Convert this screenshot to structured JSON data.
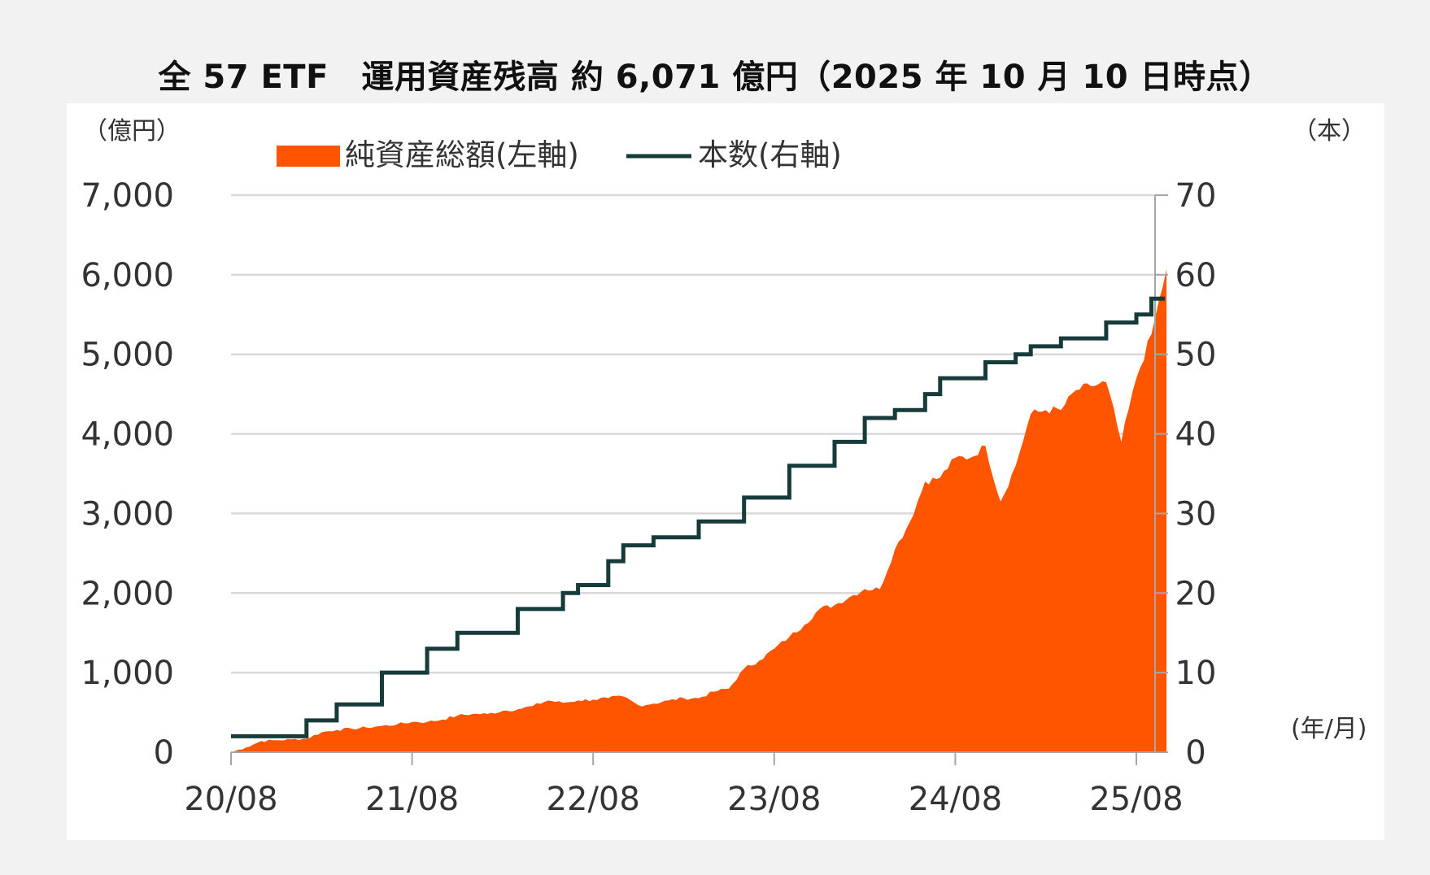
{
  "title": "全 57 ETF　運用資産残高 約 6,071 億円（2025 年 10 月 10 日時点）",
  "chart_data": {
    "type": "area",
    "title": "全 57 ETF　運用資産残高 約 6,071 億円（2025 年 10 月 10 日時点）",
    "left_unit": "（億円）",
    "right_unit": "（本）",
    "x_unit": "(年/月)",
    "x_ticks": [
      "20/08",
      "21/08",
      "22/08",
      "23/08",
      "24/08",
      "25/08"
    ],
    "left_ticks": [
      "0",
      "1,000",
      "2,000",
      "3,000",
      "4,000",
      "5,000",
      "6,000",
      "7,000"
    ],
    "right_ticks": [
      "0",
      "10",
      "20",
      "30",
      "40",
      "50",
      "60",
      "70"
    ],
    "ylim_left": [
      0,
      7000
    ],
    "ylim_right": [
      0,
      70
    ],
    "grid": true,
    "legend_position": "top",
    "colors": {
      "area": "#ff5500",
      "line": "#173a3a",
      "grid": "#d9d9d9",
      "axis": "#a6a6a6"
    },
    "series": [
      {
        "name": "純資産総額(左軸)",
        "axis": "left",
        "kind": "area",
        "points": [
          [
            "2020-08",
            0
          ],
          [
            "2020-09",
            60
          ],
          [
            "2020-10",
            140
          ],
          [
            "2020-11",
            150
          ],
          [
            "2020-12",
            160
          ],
          [
            "2021-01",
            170
          ],
          [
            "2021-02",
            250
          ],
          [
            "2021-03",
            280
          ],
          [
            "2021-04",
            295
          ],
          [
            "2021-05",
            310
          ],
          [
            "2021-06",
            330
          ],
          [
            "2021-07",
            350
          ],
          [
            "2021-08",
            380
          ],
          [
            "2021-09",
            380
          ],
          [
            "2021-10",
            410
          ],
          [
            "2021-11",
            460
          ],
          [
            "2021-12",
            480
          ],
          [
            "2022-01",
            480
          ],
          [
            "2022-02",
            520
          ],
          [
            "2022-03",
            540
          ],
          [
            "2022-04",
            580
          ],
          [
            "2022-05",
            650
          ],
          [
            "2022-06",
            620
          ],
          [
            "2022-07",
            650
          ],
          [
            "2022-08",
            660
          ],
          [
            "2022-09",
            680
          ],
          [
            "2022-10",
            700
          ],
          [
            "2022-11",
            590
          ],
          [
            "2022-12",
            610
          ],
          [
            "2023-01",
            650
          ],
          [
            "2023-02",
            680
          ],
          [
            "2023-03",
            680
          ],
          [
            "2023-04",
            760
          ],
          [
            "2023-05",
            800
          ],
          [
            "2023-06",
            1050
          ],
          [
            "2023-07",
            1150
          ],
          [
            "2023-08",
            1300
          ],
          [
            "2023-09",
            1450
          ],
          [
            "2023-10",
            1600
          ],
          [
            "2023-11",
            1800
          ],
          [
            "2023-12",
            1850
          ],
          [
            "2024-01",
            1950
          ],
          [
            "2024-02",
            2050
          ],
          [
            "2024-03",
            2050
          ],
          [
            "2024-04",
            2550
          ],
          [
            "2024-05",
            2900
          ],
          [
            "2024-06",
            3400
          ],
          [
            "2024-07",
            3450
          ],
          [
            "2024-08",
            3700
          ],
          [
            "2024-09",
            3700
          ],
          [
            "2024-10",
            3850
          ],
          [
            "2024-11",
            3150
          ],
          [
            "2024-12",
            3600
          ],
          [
            "2025-01",
            4250
          ],
          [
            "2025-02",
            4300
          ],
          [
            "2025-03",
            4300
          ],
          [
            "2025-04",
            4550
          ],
          [
            "2025-05",
            4600
          ],
          [
            "2025-06",
            4650
          ],
          [
            "2025-07",
            3900
          ],
          [
            "2025-08",
            4700
          ],
          [
            "2025-09",
            5250
          ],
          [
            "2025-10",
            6071
          ]
        ]
      },
      {
        "name": "本数(右軸)",
        "axis": "right",
        "kind": "step",
        "points": [
          [
            "2020-08",
            2
          ],
          [
            "2021-01",
            4
          ],
          [
            "2021-03",
            6
          ],
          [
            "2021-06",
            10
          ],
          [
            "2021-09",
            13
          ],
          [
            "2021-11",
            15
          ],
          [
            "2022-03",
            18
          ],
          [
            "2022-06",
            20
          ],
          [
            "2022-07",
            21
          ],
          [
            "2022-09",
            24
          ],
          [
            "2022-10",
            26
          ],
          [
            "2022-12",
            27
          ],
          [
            "2023-03",
            29
          ],
          [
            "2023-06",
            32
          ],
          [
            "2023-09",
            36
          ],
          [
            "2023-12",
            39
          ],
          [
            "2024-02",
            42
          ],
          [
            "2024-04",
            43
          ],
          [
            "2024-06",
            45
          ],
          [
            "2024-07",
            47
          ],
          [
            "2024-10",
            49
          ],
          [
            "2024-12",
            50
          ],
          [
            "2025-01",
            51
          ],
          [
            "2025-03",
            52
          ],
          [
            "2025-06",
            54
          ],
          [
            "2025-08",
            55
          ],
          [
            "2025-09",
            57
          ]
        ]
      }
    ]
  }
}
